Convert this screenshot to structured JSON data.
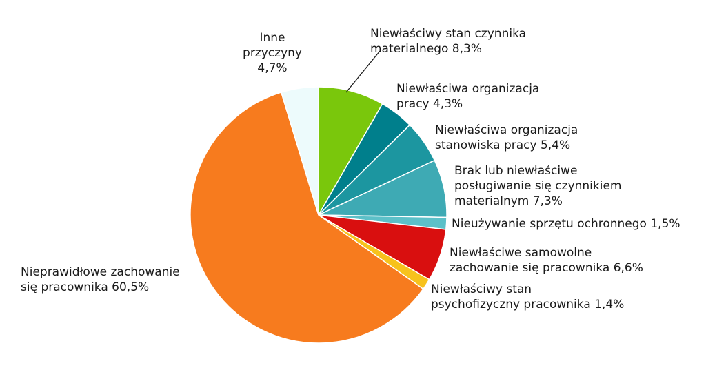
{
  "chart_data": {
    "type": "pie",
    "start_angle_deg": 0,
    "direction": "clockwise",
    "slices": [
      {
        "label": "Niewłaściwy stan czynnika materialnego",
        "value": 8.3,
        "display": "8,3%",
        "color": "#7ac70c"
      },
      {
        "label": "Niewłaściwa organizacja pracy",
        "value": 4.3,
        "display": "4,3%",
        "color": "#007f8c"
      },
      {
        "label": "Niewłaściwa organizacja stanowiska pracy",
        "value": 5.4,
        "display": "5,4%",
        "color": "#1c96a0"
      },
      {
        "label": "Brak lub niewłaściwe posługiwanie się czynnikiem materialnym",
        "value": 7.3,
        "display": "7,3%",
        "color": "#3eaab4"
      },
      {
        "label": "Nieużywanie sprzętu ochronnego",
        "value": 1.5,
        "display": "1,5%",
        "color": "#5cc0c8"
      },
      {
        "label": "Niewłaściwe samowolne zachowanie się pracownika",
        "value": 6.6,
        "display": "6,6%",
        "color": "#d90f0f"
      },
      {
        "label": "Niewłaściwy stan psychofizyczny pracownika",
        "value": 1.4,
        "display": "1,4%",
        "color": "#f7c21c"
      },
      {
        "label": "Nieprawidłowe zachowanie się pracownika",
        "value": 60.5,
        "display": "60,5%",
        "color": "#f77b1e"
      },
      {
        "label": "Inne przyczyny",
        "value": 4.7,
        "display": "4,7%",
        "color": "#edfbfc"
      }
    ]
  },
  "labels": {
    "material_state": {
      "line1": "Niewłaściwy stan czynnika",
      "line2": "materialnego 8,3%"
    },
    "work_org": {
      "line1": "Niewłaściwa organizacja",
      "line2": "pracy 4,3%"
    },
    "station_org": {
      "line1": "Niewłaściwa organizacja",
      "line2": "stanowiska pracy 5,4%"
    },
    "handling": {
      "line1": "Brak lub niewłaściwe",
      "line2": "posługiwanie się czynnikiem",
      "line3": "materialnym 7,3%"
    },
    "protective": {
      "line1": "Nieużywanie sprzętu ochronnego 1,5%"
    },
    "arbitrary": {
      "line1": "Niewłaściwe samowolne",
      "line2": "zachowanie się pracownika 6,6%"
    },
    "psycho": {
      "line1": "Niewłaściwy stan",
      "line2": "psychofizyczny pracownika 1,4%"
    },
    "behavior": {
      "line1": "Nieprawidłowe zachowanie",
      "line2": "się pracownika 60,5%"
    },
    "other": {
      "line1": "Inne",
      "line2": "przyczyny",
      "line3": "4,7%"
    }
  }
}
